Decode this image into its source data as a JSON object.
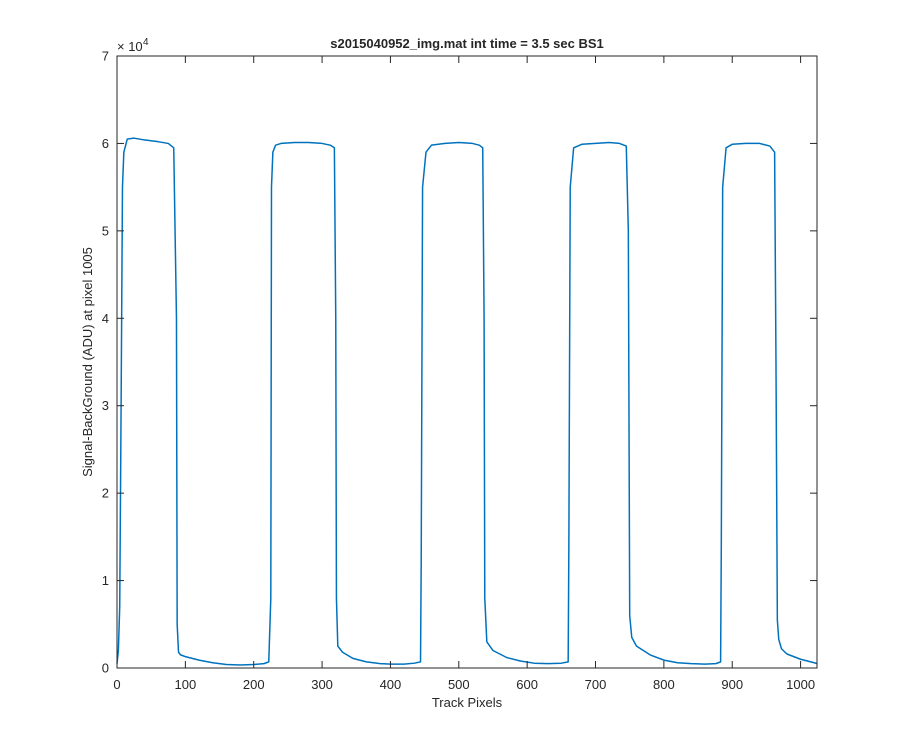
{
  "chart_data": {
    "type": "line",
    "title": "s2015040952_img.mat int time = 3.5 sec   BS1",
    "xlabel": "Track Pixels",
    "ylabel": "Signal-BackGround (ADU) at pixel 1005",
    "xlim": [
      0,
      1024
    ],
    "ylim": [
      0,
      70000
    ],
    "x_ticks": [
      0,
      100,
      200,
      300,
      400,
      500,
      600,
      700,
      800,
      900,
      1000
    ],
    "x_tick_labels": [
      "0",
      "100",
      "200",
      "300",
      "400",
      "500",
      "600",
      "700",
      "800",
      "900",
      "1000"
    ],
    "y_ticks": [
      0,
      10000,
      20000,
      30000,
      40000,
      50000,
      60000,
      70000
    ],
    "y_tick_labels": [
      "0",
      "1",
      "2",
      "3",
      "4",
      "5",
      "6",
      "7"
    ],
    "y_exponent_base": "× 10",
    "y_exponent_power": "4",
    "grid": false,
    "line_color": "#0072BD",
    "series": [
      {
        "x": [
          0,
          2,
          4,
          6,
          8,
          10,
          15,
          25,
          40,
          60,
          75,
          83,
          87,
          88,
          90,
          93,
          100,
          120,
          140,
          160,
          180,
          200,
          215,
          222,
          225,
          226,
          228,
          232,
          240,
          260,
          280,
          300,
          312,
          318,
          320,
          321,
          323,
          330,
          345,
          365,
          385,
          400,
          420,
          435,
          444,
          445,
          447,
          452,
          460,
          480,
          500,
          520,
          530,
          535,
          537,
          538,
          541,
          550,
          570,
          590,
          610,
          630,
          650,
          660,
          661,
          663,
          668,
          680,
          700,
          720,
          735,
          745,
          748,
          750,
          753,
          760,
          780,
          800,
          820,
          840,
          860,
          876,
          883,
          884,
          886,
          891,
          900,
          920,
          940,
          955,
          962,
          964,
          966,
          968,
          972,
          980,
          990,
          1000,
          1010,
          1020,
          1024
        ],
        "y": [
          500,
          2000,
          7000,
          30000,
          55000,
          59000,
          60500,
          60600,
          60400,
          60200,
          60000,
          59500,
          40000,
          5000,
          1800,
          1500,
          1300,
          900,
          600,
          400,
          350,
          400,
          500,
          700,
          8000,
          55000,
          59000,
          59800,
          60000,
          60100,
          60100,
          60000,
          59800,
          59500,
          40000,
          8000,
          2500,
          1800,
          1100,
          700,
          500,
          450,
          450,
          550,
          700,
          12000,
          55000,
          59000,
          59800,
          60000,
          60100,
          60000,
          59800,
          59500,
          40000,
          8000,
          3000,
          2000,
          1200,
          800,
          550,
          500,
          550,
          700,
          14000,
          55000,
          59500,
          59900,
          60000,
          60100,
          60000,
          59700,
          50000,
          6000,
          3500,
          2500,
          1500,
          900,
          600,
          500,
          450,
          500,
          700,
          14000,
          55000,
          59500,
          59900,
          60000,
          60000,
          59700,
          59000,
          35000,
          5500,
          3300,
          2200,
          1600,
          1300,
          1000,
          800,
          600,
          500
        ]
      }
    ]
  }
}
